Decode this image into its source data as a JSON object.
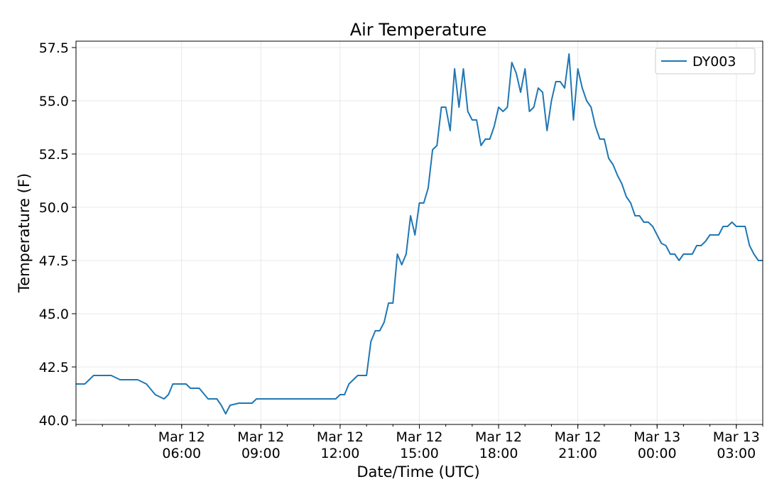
{
  "chart_data": {
    "type": "line",
    "title": "Air Temperature",
    "xlabel": "Date/Time (UTC)",
    "ylabel": "Temperature (F)",
    "ylim": [
      39.8,
      57.8
    ],
    "xlim": [
      "2023-03-12 02:00",
      "2023-03-13 04:00"
    ],
    "yticks": [
      "40.0",
      "42.5",
      "45.0",
      "47.5",
      "50.0",
      "52.5",
      "55.0",
      "57.5"
    ],
    "xticks": [
      {
        "line1": "Mar 12",
        "line2": "06:00",
        "at": "2023-03-12 06:00"
      },
      {
        "line1": "Mar 12",
        "line2": "09:00",
        "at": "2023-03-12 09:00"
      },
      {
        "line1": "Mar 12",
        "line2": "12:00",
        "at": "2023-03-12 12:00"
      },
      {
        "line1": "Mar 12",
        "line2": "15:00",
        "at": "2023-03-12 15:00"
      },
      {
        "line1": "Mar 12",
        "line2": "18:00",
        "at": "2023-03-12 18:00"
      },
      {
        "line1": "Mar 12",
        "line2": "21:00",
        "at": "2023-03-12 21:00"
      },
      {
        "line1": "Mar 13",
        "line2": "00:00",
        "at": "2023-03-13 00:00"
      },
      {
        "line1": "Mar 13",
        "line2": "03:00",
        "at": "2023-03-13 03:00"
      }
    ],
    "grid": true,
    "legend_position": "top-right",
    "series": [
      {
        "name": "DY003",
        "color": "#1f77b4",
        "x": [
          "2023-03-12 02:00",
          "2023-03-12 02:20",
          "2023-03-12 02:40",
          "2023-03-12 03:00",
          "2023-03-12 03:20",
          "2023-03-12 03:40",
          "2023-03-12 04:00",
          "2023-03-12 04:20",
          "2023-03-12 04:40",
          "2023-03-12 05:00",
          "2023-03-12 05:20",
          "2023-03-12 05:30",
          "2023-03-12 05:40",
          "2023-03-12 05:50",
          "2023-03-12 06:00",
          "2023-03-12 06:10",
          "2023-03-12 06:20",
          "2023-03-12 06:40",
          "2023-03-12 07:00",
          "2023-03-12 07:20",
          "2023-03-12 07:30",
          "2023-03-12 07:40",
          "2023-03-12 07:50",
          "2023-03-12 08:10",
          "2023-03-12 08:30",
          "2023-03-12 08:40",
          "2023-03-12 08:50",
          "2023-03-12 09:00",
          "2023-03-12 09:20",
          "2023-03-12 09:40",
          "2023-03-12 10:00",
          "2023-03-12 10:20",
          "2023-03-12 10:40",
          "2023-03-12 11:00",
          "2023-03-12 11:20",
          "2023-03-12 11:50",
          "2023-03-12 12:00",
          "2023-03-12 12:10",
          "2023-03-12 12:20",
          "2023-03-12 12:40",
          "2023-03-12 12:50",
          "2023-03-12 13:00",
          "2023-03-12 13:10",
          "2023-03-12 13:20",
          "2023-03-12 13:30",
          "2023-03-12 13:40",
          "2023-03-12 13:50",
          "2023-03-12 14:00",
          "2023-03-12 14:10",
          "2023-03-12 14:20",
          "2023-03-12 14:30",
          "2023-03-12 14:40",
          "2023-03-12 14:50",
          "2023-03-12 15:00",
          "2023-03-12 15:10",
          "2023-03-12 15:20",
          "2023-03-12 15:30",
          "2023-03-12 15:40",
          "2023-03-12 15:50",
          "2023-03-12 16:00",
          "2023-03-12 16:10",
          "2023-03-12 16:20",
          "2023-03-12 16:30",
          "2023-03-12 16:40",
          "2023-03-12 16:50",
          "2023-03-12 17:00",
          "2023-03-12 17:10",
          "2023-03-12 17:20",
          "2023-03-12 17:30",
          "2023-03-12 17:40",
          "2023-03-12 17:50",
          "2023-03-12 18:00",
          "2023-03-12 18:10",
          "2023-03-12 18:20",
          "2023-03-12 18:30",
          "2023-03-12 18:40",
          "2023-03-12 18:50",
          "2023-03-12 19:00",
          "2023-03-12 19:10",
          "2023-03-12 19:20",
          "2023-03-12 19:30",
          "2023-03-12 19:40",
          "2023-03-12 19:50",
          "2023-03-12 20:00",
          "2023-03-12 20:10",
          "2023-03-12 20:20",
          "2023-03-12 20:30",
          "2023-03-12 20:40",
          "2023-03-12 20:50",
          "2023-03-12 21:00",
          "2023-03-12 21:10",
          "2023-03-12 21:20",
          "2023-03-12 21:30",
          "2023-03-12 21:40",
          "2023-03-12 21:50",
          "2023-03-12 22:00",
          "2023-03-12 22:10",
          "2023-03-12 22:20",
          "2023-03-12 22:30",
          "2023-03-12 22:40",
          "2023-03-12 22:50",
          "2023-03-12 23:00",
          "2023-03-12 23:10",
          "2023-03-12 23:20",
          "2023-03-12 23:30",
          "2023-03-12 23:40",
          "2023-03-12 23:50",
          "2023-03-13 00:00",
          "2023-03-13 00:10",
          "2023-03-13 00:20",
          "2023-03-13 00:30",
          "2023-03-13 00:40",
          "2023-03-13 00:50",
          "2023-03-13 01:00",
          "2023-03-13 01:10",
          "2023-03-13 01:20",
          "2023-03-13 01:30",
          "2023-03-13 01:40",
          "2023-03-13 01:50",
          "2023-03-13 02:00",
          "2023-03-13 02:10",
          "2023-03-13 02:20",
          "2023-03-13 02:30",
          "2023-03-13 02:40",
          "2023-03-13 02:50",
          "2023-03-13 03:00",
          "2023-03-13 03:10",
          "2023-03-13 03:20",
          "2023-03-13 03:30",
          "2023-03-13 03:40",
          "2023-03-13 03:50",
          "2023-03-13 04:00"
        ],
        "y": [
          41.7,
          41.7,
          42.1,
          42.1,
          42.1,
          41.9,
          41.9,
          41.9,
          41.7,
          41.2,
          41.0,
          41.2,
          41.7,
          41.7,
          41.7,
          41.7,
          41.5,
          41.5,
          41.0,
          41.0,
          40.7,
          40.3,
          40.7,
          40.8,
          40.8,
          40.8,
          41.0,
          41.0,
          41.0,
          41.0,
          41.0,
          41.0,
          41.0,
          41.0,
          41.0,
          41.0,
          41.2,
          41.2,
          41.7,
          42.1,
          42.1,
          42.1,
          43.7,
          44.2,
          44.2,
          44.6,
          45.5,
          45.5,
          47.8,
          47.3,
          47.8,
          49.6,
          48.7,
          50.2,
          50.2,
          50.9,
          52.7,
          52.9,
          54.7,
          54.7,
          53.6,
          56.5,
          54.7,
          56.5,
          54.5,
          54.1,
          54.1,
          52.9,
          53.2,
          53.2,
          53.8,
          54.7,
          54.5,
          54.7,
          56.8,
          56.3,
          55.4,
          56.5,
          54.5,
          54.7,
          55.6,
          55.4,
          53.6,
          55.0,
          55.9,
          55.9,
          55.6,
          57.2,
          54.1,
          56.5,
          55.6,
          55.0,
          54.7,
          53.8,
          53.2,
          53.2,
          52.3,
          52.0,
          51.5,
          51.1,
          50.5,
          50.2,
          49.6,
          49.6,
          49.3,
          49.3,
          49.1,
          48.7,
          48.3,
          48.2,
          47.8,
          47.8,
          47.5,
          47.8,
          47.8,
          47.8,
          48.2,
          48.2,
          48.4,
          48.7,
          48.7,
          48.7,
          49.1,
          49.1,
          49.3,
          49.1,
          49.1,
          49.1,
          48.2,
          47.8,
          47.5,
          47.5
        ]
      }
    ]
  }
}
